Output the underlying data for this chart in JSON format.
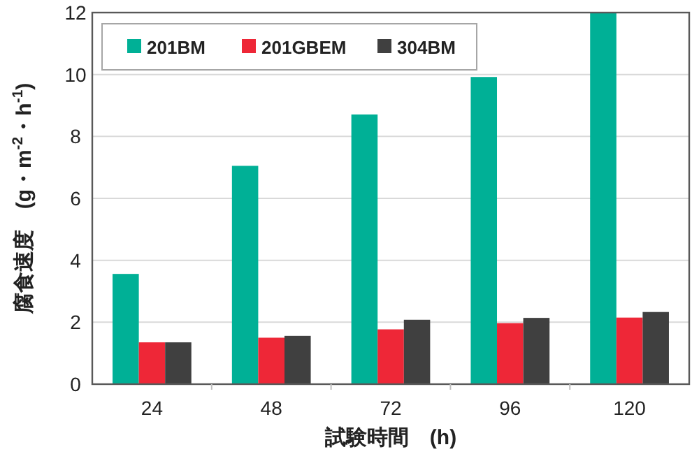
{
  "chart_data": {
    "type": "bar",
    "xlabel": "試験時間　(h)",
    "ylabel": "腐食速度　(g・m$^{-2}$・h$^{-1}$)",
    "categories": [
      "24",
      "48",
      "72",
      "96",
      "120"
    ],
    "series": [
      {
        "name": "201BM",
        "color": "#00b096",
        "values": [
          3.56,
          7.05,
          8.71,
          9.92,
          12
        ]
      },
      {
        "name": "201GBEM",
        "color": "#ee2737",
        "values": [
          1.35,
          1.5,
          1.77,
          1.97,
          2.15
        ]
      },
      {
        "name": "304BM",
        "color": "#404040",
        "values": [
          1.35,
          1.56,
          2.08,
          2.14,
          2.33
        ]
      }
    ],
    "ylim": [
      0,
      12
    ],
    "yticks": [
      0,
      2,
      4,
      6,
      8,
      10,
      12
    ],
    "grid": "y",
    "legend": "top left"
  }
}
